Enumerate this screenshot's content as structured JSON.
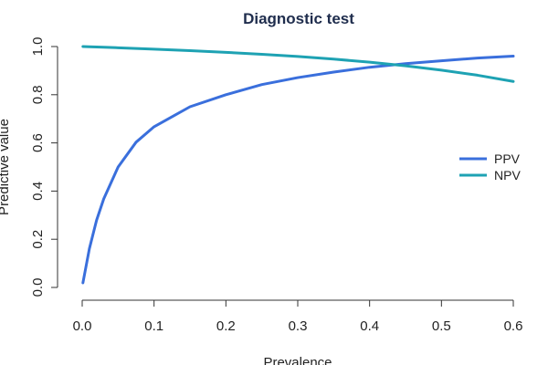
{
  "chart_data": {
    "type": "line",
    "title": "Diagnostic test",
    "xlabel": "Prevalence",
    "ylabel": "Predictive value",
    "xlim": [
      0,
      0.6
    ],
    "ylim": [
      0,
      1
    ],
    "x_ticks": [
      0,
      0.1,
      0.2,
      0.3,
      0.4,
      0.5,
      0.6
    ],
    "x_tick_labels": [
      "0.0",
      "0.1",
      "0.2",
      "0.3",
      "0.4",
      "0.5",
      "0.6"
    ],
    "y_ticks": [
      0,
      0.2,
      0.4,
      0.6,
      0.8,
      1.0
    ],
    "y_tick_labels": [
      "0.0",
      "0.2",
      "0.4",
      "0.6",
      "0.8",
      "1.0"
    ],
    "grid": false,
    "legend": "right",
    "x": [
      0.001,
      0.01,
      0.02,
      0.03,
      0.05,
      0.075,
      0.1,
      0.15,
      0.2,
      0.25,
      0.3,
      0.35,
      0.4,
      0.45,
      0.5,
      0.55,
      0.6
    ],
    "series": [
      {
        "name": "PPV",
        "color": "#3a6fdc",
        "values": [
          0.019,
          0.161,
          0.279,
          0.368,
          0.5,
          0.603,
          0.667,
          0.75,
          0.8,
          0.842,
          0.871,
          0.894,
          0.914,
          0.929,
          0.941,
          0.952,
          0.96
        ]
      },
      {
        "name": "NPV",
        "color": "#1ea2b3",
        "values": [
          1.0,
          0.999,
          0.998,
          0.997,
          0.995,
          0.992,
          0.989,
          0.983,
          0.976,
          0.968,
          0.959,
          0.948,
          0.935,
          0.92,
          0.902,
          0.881,
          0.855
        ]
      }
    ]
  }
}
